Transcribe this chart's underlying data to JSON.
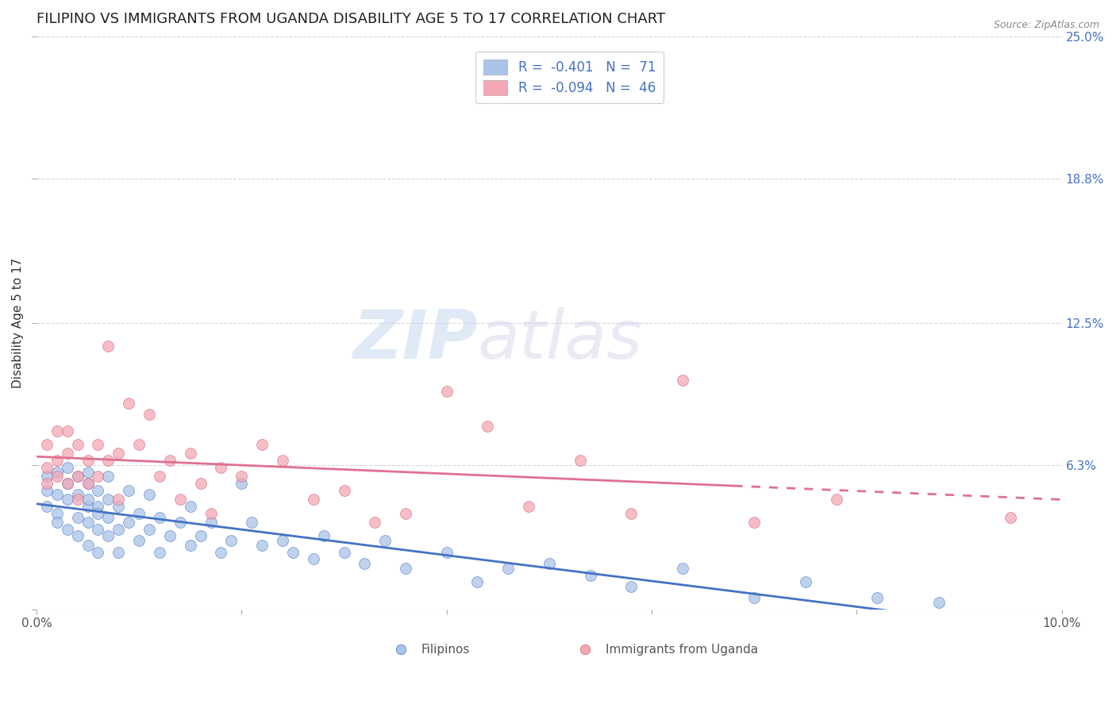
{
  "title": "FILIPINO VS IMMIGRANTS FROM UGANDA DISABILITY AGE 5 TO 17 CORRELATION CHART",
  "source": "Source: ZipAtlas.com",
  "ylabel": "Disability Age 5 to 17",
  "xlim": [
    0.0,
    0.1
  ],
  "ylim": [
    0.0,
    0.25
  ],
  "filipino_color": "#aac4e8",
  "uganda_color": "#f4a7b5",
  "filipino_line_color": "#4472c4",
  "uganda_line_color": "#e07090",
  "legend_label_filipino": "R =  -0.401   N =  71",
  "legend_label_uganda": "R =  -0.094   N =  46",
  "watermark_zip": "ZIP",
  "watermark_atlas": "atlas",
  "background_color": "#ffffff",
  "grid_color": "#cccccc",
  "title_fontsize": 13,
  "axis_label_fontsize": 11,
  "tick_fontsize": 11,
  "right_ytick_color": "#4472c4",
  "filipino_x": [
    0.001,
    0.001,
    0.001,
    0.002,
    0.002,
    0.002,
    0.002,
    0.003,
    0.003,
    0.003,
    0.003,
    0.004,
    0.004,
    0.004,
    0.004,
    0.005,
    0.005,
    0.005,
    0.005,
    0.005,
    0.005,
    0.006,
    0.006,
    0.006,
    0.006,
    0.006,
    0.007,
    0.007,
    0.007,
    0.007,
    0.008,
    0.008,
    0.008,
    0.009,
    0.009,
    0.01,
    0.01,
    0.011,
    0.011,
    0.012,
    0.012,
    0.013,
    0.014,
    0.015,
    0.015,
    0.016,
    0.017,
    0.018,
    0.019,
    0.02,
    0.021,
    0.022,
    0.024,
    0.025,
    0.027,
    0.028,
    0.03,
    0.032,
    0.034,
    0.036,
    0.04,
    0.043,
    0.046,
    0.05,
    0.054,
    0.058,
    0.063,
    0.07,
    0.075,
    0.082,
    0.088
  ],
  "filipino_y": [
    0.052,
    0.058,
    0.045,
    0.05,
    0.042,
    0.038,
    0.06,
    0.048,
    0.035,
    0.055,
    0.062,
    0.04,
    0.05,
    0.032,
    0.058,
    0.045,
    0.038,
    0.055,
    0.028,
    0.048,
    0.06,
    0.035,
    0.045,
    0.025,
    0.052,
    0.042,
    0.032,
    0.04,
    0.058,
    0.048,
    0.035,
    0.045,
    0.025,
    0.038,
    0.052,
    0.03,
    0.042,
    0.035,
    0.05,
    0.025,
    0.04,
    0.032,
    0.038,
    0.028,
    0.045,
    0.032,
    0.038,
    0.025,
    0.03,
    0.055,
    0.038,
    0.028,
    0.03,
    0.025,
    0.022,
    0.032,
    0.025,
    0.02,
    0.03,
    0.018,
    0.025,
    0.012,
    0.018,
    0.02,
    0.015,
    0.01,
    0.018,
    0.005,
    0.012,
    0.005,
    0.003
  ],
  "uganda_x": [
    0.001,
    0.001,
    0.001,
    0.002,
    0.002,
    0.002,
    0.003,
    0.003,
    0.003,
    0.004,
    0.004,
    0.004,
    0.005,
    0.005,
    0.006,
    0.006,
    0.007,
    0.007,
    0.008,
    0.008,
    0.009,
    0.01,
    0.011,
    0.012,
    0.013,
    0.014,
    0.015,
    0.016,
    0.017,
    0.018,
    0.02,
    0.022,
    0.024,
    0.027,
    0.03,
    0.033,
    0.036,
    0.04,
    0.044,
    0.048,
    0.053,
    0.058,
    0.063,
    0.07,
    0.078,
    0.095
  ],
  "uganda_y": [
    0.062,
    0.072,
    0.055,
    0.078,
    0.065,
    0.058,
    0.068,
    0.055,
    0.078,
    0.072,
    0.058,
    0.048,
    0.065,
    0.055,
    0.072,
    0.058,
    0.115,
    0.065,
    0.048,
    0.068,
    0.09,
    0.072,
    0.085,
    0.058,
    0.065,
    0.048,
    0.068,
    0.055,
    0.042,
    0.062,
    0.058,
    0.072,
    0.065,
    0.048,
    0.052,
    0.038,
    0.042,
    0.095,
    0.08,
    0.045,
    0.065,
    0.042,
    0.1,
    0.038,
    0.048,
    0.04
  ],
  "filipinos_label": "Filipinos",
  "uganda_label": "Immigrants from Uganda"
}
